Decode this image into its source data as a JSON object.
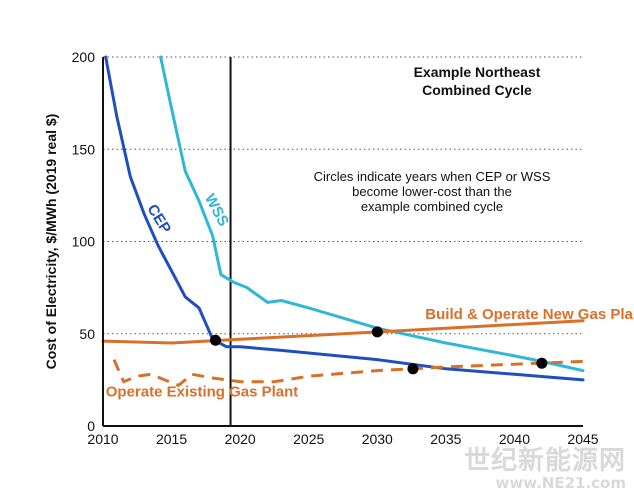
{
  "chart_data": {
    "type": "line",
    "title": "Example Northeast Combined Cycle",
    "title_lines": [
      "Example Northeast",
      "Combined Cycle"
    ],
    "annotation_lines": [
      "Circles indicate years when CEP or WSS",
      "become lower-cost than the",
      "example combined cycle"
    ],
    "ylabel": "Cost of Electricity, $/MWh (2019 real $)",
    "xlabel": "",
    "xlim": [
      2010,
      2045
    ],
    "ylim": [
      0,
      200
    ],
    "x_ticks": [
      2010,
      2015,
      2020,
      2025,
      2030,
      2035,
      2040,
      2045
    ],
    "y_ticks": [
      0,
      50,
      100,
      150,
      200
    ],
    "grid": "horizontal dotted",
    "vertical_marker_x": 2019.3,
    "series": [
      {
        "name": "CEP",
        "color": "#1f4fbf",
        "style": "solid",
        "label_x": 2013.2,
        "label_y": 118,
        "label_rotation": 58,
        "points": [
          [
            2010.2,
            200
          ],
          [
            2011,
            168
          ],
          [
            2012,
            135
          ],
          [
            2013,
            115
          ],
          [
            2014,
            98
          ],
          [
            2015,
            84
          ],
          [
            2016,
            70
          ],
          [
            2017,
            64
          ],
          [
            2018,
            47
          ],
          [
            2019,
            43
          ],
          [
            2020,
            43
          ],
          [
            2023,
            41
          ],
          [
            2030,
            36
          ],
          [
            2035,
            31
          ],
          [
            2040,
            28
          ],
          [
            2045,
            25
          ]
        ]
      },
      {
        "name": "WSS",
        "color": "#2fb7d6",
        "style": "solid",
        "label_x": 2017.4,
        "label_y": 124,
        "label_rotation": 62,
        "points": [
          [
            2014.2,
            200
          ],
          [
            2015,
            172
          ],
          [
            2016,
            138
          ],
          [
            2017,
            122
          ],
          [
            2018,
            103
          ],
          [
            2018.6,
            82
          ],
          [
            2019.5,
            78
          ],
          [
            2020.5,
            75
          ],
          [
            2022,
            67
          ],
          [
            2023,
            68
          ],
          [
            2025,
            64
          ],
          [
            2030,
            53
          ],
          [
            2035,
            45
          ],
          [
            2040,
            38
          ],
          [
            2042,
            35
          ],
          [
            2045,
            30
          ]
        ]
      },
      {
        "name": "Build & Operate New Gas Plant",
        "color": "#d9702a",
        "style": "solid",
        "label_x": 2033.5,
        "label_y": 58,
        "points": [
          [
            2010,
            46
          ],
          [
            2015,
            45
          ],
          [
            2020,
            47
          ],
          [
            2025,
            49
          ],
          [
            2030,
            51
          ],
          [
            2035,
            53
          ],
          [
            2040,
            55
          ],
          [
            2045,
            57
          ]
        ]
      },
      {
        "name": "Operate Existing Gas Plant",
        "color": "#d9702a",
        "style": "dashed",
        "label_x": 2010.2,
        "label_y": 16,
        "points": [
          [
            2010.8,
            36
          ],
          [
            2011.5,
            24
          ],
          [
            2012.5,
            27
          ],
          [
            2013.5,
            28
          ],
          [
            2014.5,
            25
          ],
          [
            2015.5,
            22
          ],
          [
            2016.5,
            28
          ],
          [
            2018,
            26
          ],
          [
            2020,
            24
          ],
          [
            2022.5,
            24
          ],
          [
            2025,
            27
          ],
          [
            2030,
            30
          ],
          [
            2035,
            32
          ],
          [
            2040,
            33.5
          ],
          [
            2045,
            35
          ]
        ]
      }
    ],
    "markers": [
      [
        2018.2,
        46.5
      ],
      [
        2030,
        51
      ],
      [
        2032.6,
        31
      ],
      [
        2042,
        34
      ]
    ]
  },
  "watermark": {
    "site_name": "世纪新能源网",
    "url": "www.NE21.com"
  }
}
